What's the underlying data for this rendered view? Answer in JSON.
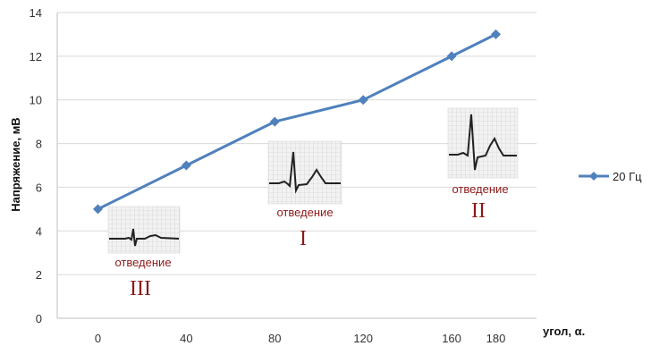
{
  "chart_data": {
    "type": "line",
    "xlabel": "угол, α.",
    "ylabel": "Напряжение, мВ",
    "x": [
      0,
      40,
      80,
      120,
      160,
      180
    ],
    "xticks": [
      "0",
      "40",
      "80",
      "120",
      "160",
      "180"
    ],
    "ylim": [
      0,
      14
    ],
    "yticks": [
      "0",
      "2",
      "4",
      "6",
      "8",
      "10",
      "12",
      "14"
    ],
    "grid": true,
    "legend_position": "right",
    "series": [
      {
        "name": "20 Гц",
        "color": "#4f81bd",
        "values": [
          5,
          7,
          9,
          10,
          12,
          13
        ]
      }
    ],
    "annotations": [
      {
        "label": "отведение",
        "numeral": "III"
      },
      {
        "label": "отведение",
        "numeral": "I"
      },
      {
        "label": "отведение",
        "numeral": "II"
      }
    ]
  }
}
